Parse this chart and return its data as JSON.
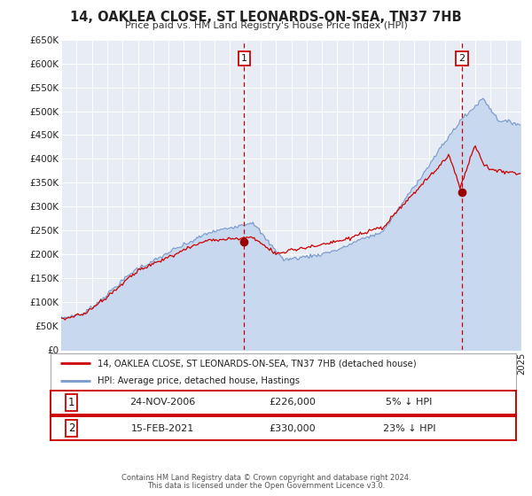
{
  "title": "14, OAKLEA CLOSE, ST LEONARDS-ON-SEA, TN37 7HB",
  "subtitle": "Price paid vs. HM Land Registry's House Price Index (HPI)",
  "fig_bg_color": "#ffffff",
  "plot_bg_color": "#e8edf5",
  "grid_color": "#ffffff",
  "red_line_color": "#cc0000",
  "blue_line_color": "#7799cc",
  "blue_fill_color": "#c8d8ee",
  "marker_color": "#990000",
  "vline_color": "#cc0000",
  "legend_label_red": "14, OAKLEA CLOSE, ST LEONARDS-ON-SEA, TN37 7HB (detached house)",
  "legend_label_blue": "HPI: Average price, detached house, Hastings",
  "annotation1_date": "24-NOV-2006",
  "annotation1_price": "£226,000",
  "annotation1_hpi": "5% ↓ HPI",
  "annotation2_date": "15-FEB-2021",
  "annotation2_price": "£330,000",
  "annotation2_hpi": "23% ↓ HPI",
  "vline1_x": 2006.92,
  "vline2_x": 2021.12,
  "marker1_x": 2006.92,
  "marker1_y": 226000,
  "marker2_x": 2021.12,
  "marker2_y": 330000,
  "xmin": 1995,
  "xmax": 2025,
  "ymin": 0,
  "ymax": 650000,
  "yticks": [
    0,
    50000,
    100000,
    150000,
    200000,
    250000,
    300000,
    350000,
    400000,
    450000,
    500000,
    550000,
    600000,
    650000
  ],
  "ytick_labels": [
    "£0",
    "£50K",
    "£100K",
    "£150K",
    "£200K",
    "£250K",
    "£300K",
    "£350K",
    "£400K",
    "£450K",
    "£500K",
    "£550K",
    "£600K",
    "£650K"
  ],
  "footer1": "Contains HM Land Registry data © Crown copyright and database right 2024.",
  "footer2": "This data is licensed under the Open Government Licence v3.0."
}
